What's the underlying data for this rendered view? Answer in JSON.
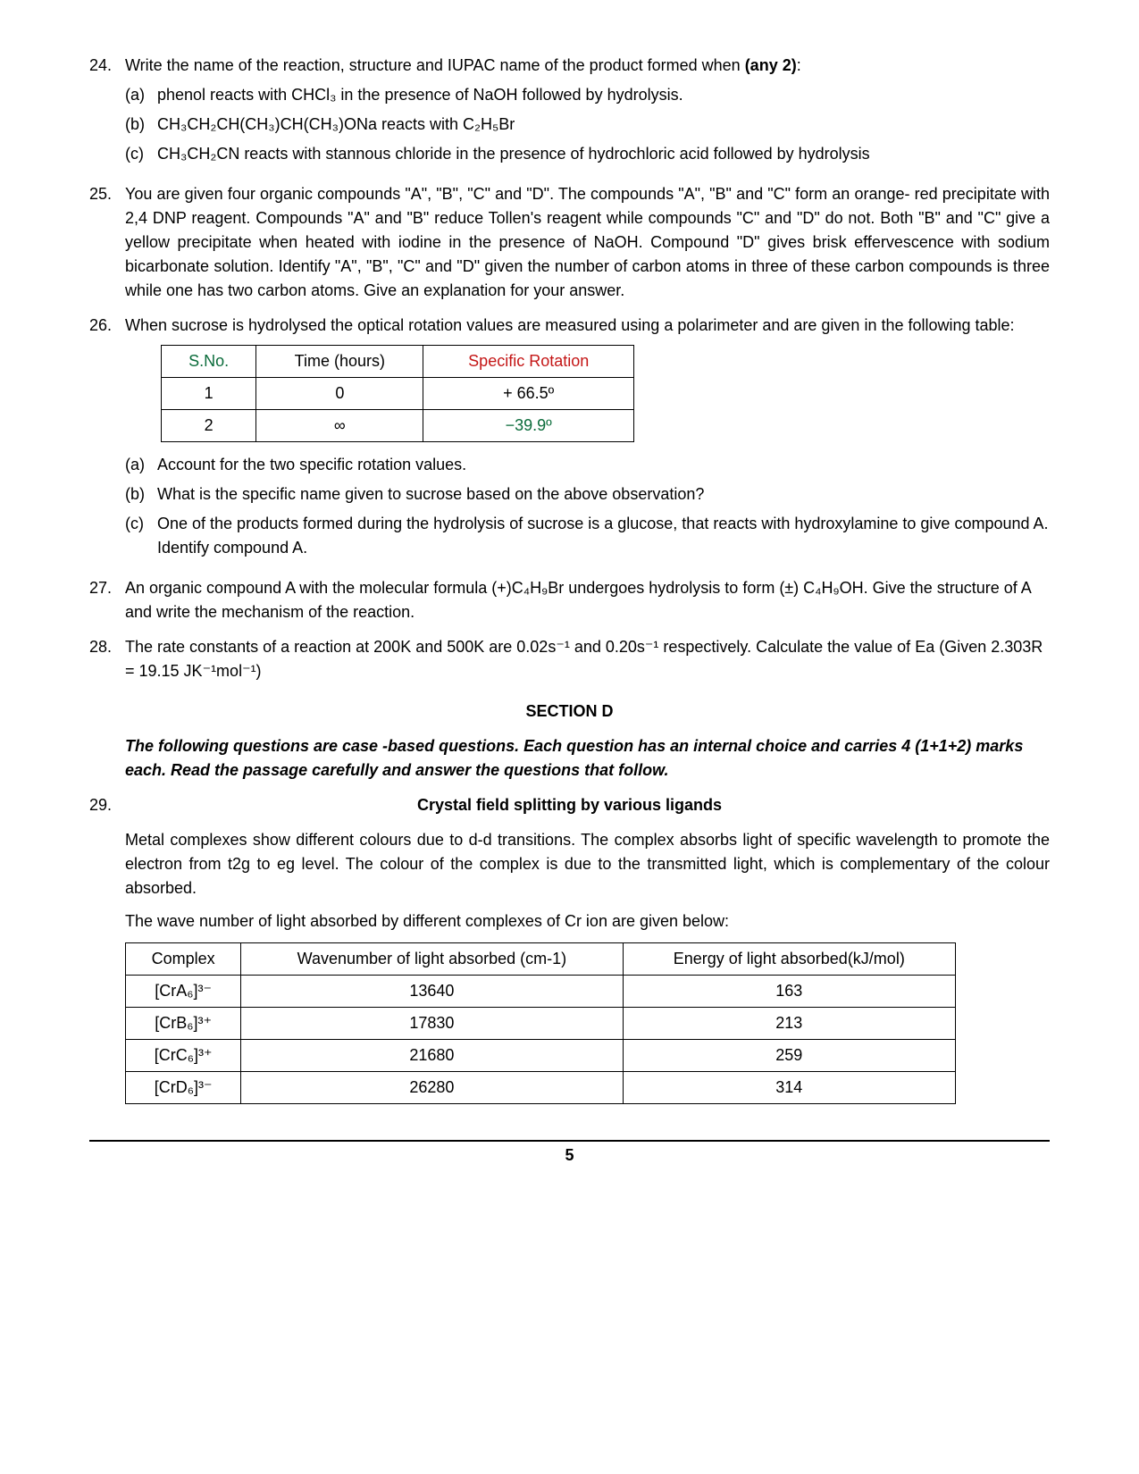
{
  "q24": {
    "num": "24.",
    "text_pre": "Write the name of the reaction, structure and IUPAC name of the product formed when ",
    "text_bold": "(any 2)",
    "text_post": ":",
    "a_num": "(a)",
    "a": "phenol reacts with CHCl₃ in the presence of NaOH followed by hydrolysis.",
    "b_num": "(b)",
    "b": "CH₃CH₂CH(CH₃)CH(CH₃)ONa reacts with C₂H₅Br",
    "c_num": "(c)",
    "c": "CH₃CH₂CN reacts with stannous chloride in the presence of hydrochloric acid followed by hydrolysis"
  },
  "q25": {
    "num": "25.",
    "text": "You are given four organic compounds \"A\", \"B\", \"C\" and \"D\". The compounds \"A\", \"B\" and \"C\" form an orange- red precipitate with 2,4 DNP reagent. Compounds \"A\" and \"B\" reduce Tollen's reagent while compounds \"C\" and \"D\" do not. Both \"B\" and \"C\" give a yellow precipitate when heated with iodine in the presence of NaOH. Compound \"D\" gives brisk effervescence with sodium bicarbonate solution. Identify \"A\", \"B\", \"C\" and \"D\" given the number of carbon atoms in three of these carbon compounds is three while one has two carbon atoms. Give an explanation for your answer."
  },
  "q26": {
    "num": "26.",
    "text": "When sucrose is hydrolysed the optical rotation values are measured using a polarimeter and are given in the following table:",
    "table": {
      "h1": "S.No.",
      "h2": "Time (hours)",
      "h3": "Specific Rotation",
      "r1c1": "1",
      "r1c2": "0",
      "r1c3": "+ 66.5º",
      "r2c1": "2",
      "r2c2": "∞",
      "r2c3": "−39.9º",
      "h1_color": "#0a6b3a",
      "h3_color": "#c41616",
      "r2c3_color": "#0a6b3a"
    },
    "a_num": "(a)",
    "a": "Account for the two specific rotation values.",
    "b_num": "(b)",
    "b": "What is the specific name given to sucrose based on the above observation?",
    "c_num": "(c)",
    "c": "One of the products formed during the hydrolysis of sucrose is a glucose, that reacts with hydroxylamine to give compound A. Identify compound A."
  },
  "q27": {
    "num": "27.",
    "text": "An organic compound A with the molecular formula (+)C₄H₉Br undergoes hydrolysis to form (±) C₄H₉OH. Give the structure of A and write the mechanism of the reaction."
  },
  "q28": {
    "num": "28.",
    "text": "The rate constants of a reaction at 200K and 500K are 0.02s⁻¹ and 0.20s⁻¹ respectively. Calculate the value of Ea (Given 2.303R = 19.15 JK⁻¹mol⁻¹)"
  },
  "sectionD": "SECTION D",
  "sectionD_note": "The following questions are case -based questions. Each question has an internal choice and carries 4 (1+1+2) marks each. Read the passage carefully and answer the questions that follow.",
  "q29": {
    "num": "29.",
    "title": "Crystal field splitting by various ligands",
    "para": "Metal complexes show different colours due to d-d transitions. The complex absorbs light of specific wavelength to promote the electron from t2g to eg level. The colour of the complex is due to the transmitted light, which is complementary of the colour absorbed.",
    "intro": "The wave number of light absorbed by different complexes of Cr ion are given below:",
    "table": {
      "h1": "Complex",
      "h2": "Wavenumber of light absorbed (cm-1)",
      "h3": "Energy of light absorbed(kJ/mol)",
      "r1c1": "[CrA₆]³⁻",
      "r1c2": "13640",
      "r1c3": "163",
      "r2c1": "[CrB₆]³⁺",
      "r2c2": "17830",
      "r2c3": "213",
      "r3c1": "[CrC₆]³⁺",
      "r3c2": "21680",
      "r3c3": "259",
      "r4c1": "[CrD₆]³⁻",
      "r4c2": "26280",
      "r4c3": "314"
    }
  },
  "page": "5"
}
